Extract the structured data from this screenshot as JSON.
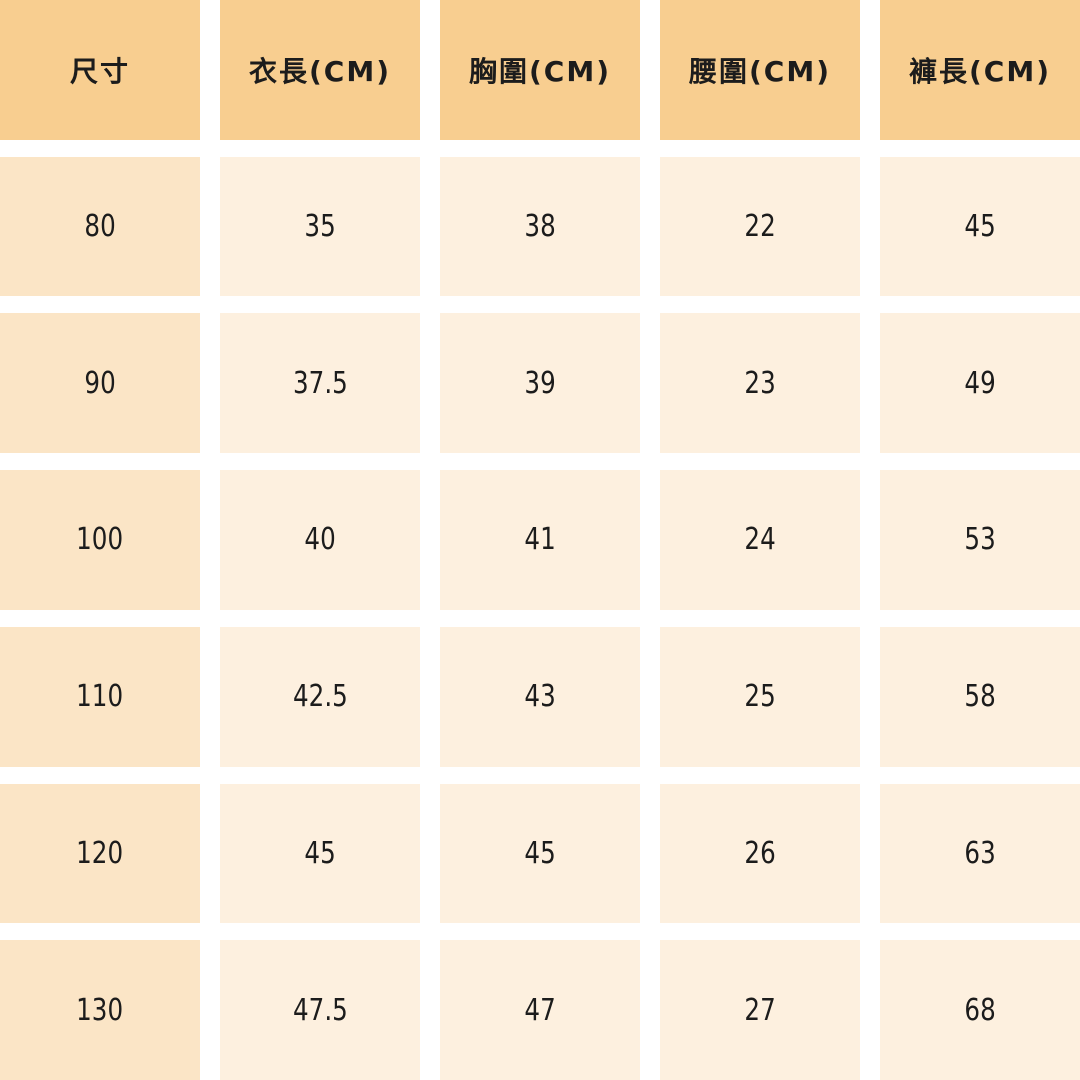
{
  "table": {
    "headers": [
      "尺寸",
      "衣長(CM)",
      "胸圍(CM)",
      "腰圍(CM)",
      "褲長(CM)"
    ],
    "rows": [
      [
        "80",
        "35",
        "38",
        "22",
        "45"
      ],
      [
        "90",
        "37.5",
        "39",
        "23",
        "49"
      ],
      [
        "100",
        "40",
        "41",
        "24",
        "53"
      ],
      [
        "110",
        "42.5",
        "43",
        "25",
        "58"
      ],
      [
        "120",
        "45",
        "45",
        "26",
        "63"
      ],
      [
        "130",
        "47.5",
        "47",
        "27",
        "68"
      ]
    ]
  },
  "colors": {
    "header_bg": "#f8ce90",
    "size_col_bg": "#fbe5c6",
    "cell_bg": "#fdf0df",
    "gap_bg": "#ffffff",
    "text": "#1c1c1c"
  },
  "chart_data": {
    "type": "table",
    "title": "",
    "columns": [
      "尺寸",
      "衣長(CM)",
      "胸圍(CM)",
      "腰圍(CM)",
      "褲長(CM)"
    ],
    "rows": [
      {
        "尺寸": "80",
        "衣長(CM)": 35,
        "胸圍(CM)": 38,
        "腰圍(CM)": 22,
        "褲長(CM)": 45
      },
      {
        "尺寸": "90",
        "衣長(CM)": 37.5,
        "胸圍(CM)": 39,
        "腰圍(CM)": 23,
        "褲長(CM)": 49
      },
      {
        "尺寸": "100",
        "衣長(CM)": 40,
        "胸圍(CM)": 41,
        "腰圍(CM)": 24,
        "褲長(CM)": 53
      },
      {
        "尺寸": "110",
        "衣長(CM)": 42.5,
        "胸圍(CM)": 43,
        "腰圍(CM)": 25,
        "褲長(CM)": 58
      },
      {
        "尺寸": "120",
        "衣長(CM)": 45,
        "胸圍(CM)": 45,
        "腰圍(CM)": 26,
        "褲長(CM)": 63
      },
      {
        "尺寸": "130",
        "衣長(CM)": 47.5,
        "胸圍(CM)": 47,
        "腰圍(CM)": 27,
        "褲長(CM)": 68
      }
    ]
  }
}
